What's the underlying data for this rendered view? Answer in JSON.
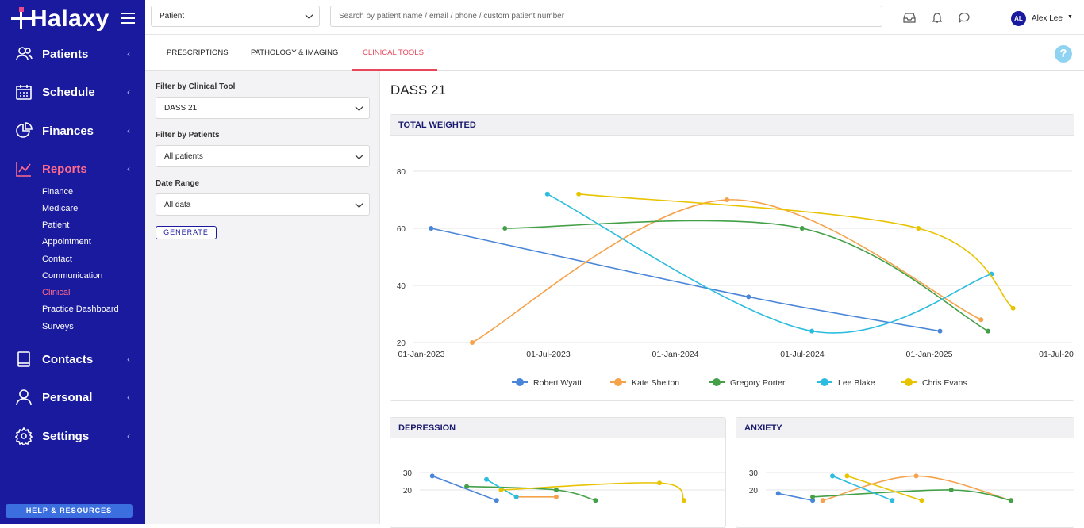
{
  "sidebar": {
    "logo": "Halaxy",
    "nav": [
      {
        "label": "Patients"
      },
      {
        "label": "Schedule"
      },
      {
        "label": "Finances"
      },
      {
        "label": "Reports"
      },
      {
        "label": "Contacts"
      },
      {
        "label": "Personal"
      },
      {
        "label": "Settings"
      }
    ],
    "reports_sub": [
      "Finance",
      "Medicare",
      "Patient",
      "Appointment",
      "Contact",
      "Communication",
      "Clinical",
      "Practice Dashboard",
      "Surveys"
    ],
    "help": "HELP & RESOURCES"
  },
  "topbar": {
    "patient_select": "Patient",
    "search_placeholder": "Search by patient name / email / phone / custom patient number",
    "avatar": "AL",
    "user": "Alex Lee"
  },
  "tabs": [
    "PRESCRIPTIONS",
    "PATHOLOGY & IMAGING",
    "CLINICAL TOOLS"
  ],
  "filters": {
    "tool_label": "Filter by Clinical Tool",
    "tool_value": "DASS 21",
    "patients_label": "Filter by Patients",
    "patients_value": "All patients",
    "range_label": "Date Range",
    "range_value": "All data",
    "generate": "GENERATE"
  },
  "main": {
    "title": "DASS 21"
  },
  "colors": {
    "Robert Wyatt": "#4a86d8",
    "Kate Shelton": "#f5a24b",
    "Gregory Porter": "#43a047",
    "Lee Blake": "#2bbcdf",
    "Chris Evans": "#e8c300"
  },
  "chart_data": [
    {
      "type": "line",
      "title": "TOTAL WEIGHTED",
      "ylim": [
        20,
        80
      ],
      "yticks": [
        20,
        40,
        60,
        80
      ],
      "xticks": [
        "01-Jan-2023",
        "01-Jul-2023",
        "01-Jan-2024",
        "01-Jul-2024",
        "01-Jan-2025",
        "01-Jul-20"
      ],
      "series": [
        {
          "name": "Robert Wyatt",
          "points": [
            [
              "2023-01-15",
              60
            ],
            [
              "2024-04-15",
              36
            ],
            [
              "2025-01-15",
              24
            ]
          ]
        },
        {
          "name": "Kate Shelton",
          "points": [
            [
              "2023-03-15",
              20
            ],
            [
              "2024-03-15",
              70
            ],
            [
              "2025-03-15",
              28
            ]
          ]
        },
        {
          "name": "Gregory Porter",
          "points": [
            [
              "2023-05-01",
              60
            ],
            [
              "2024-07-01",
              60
            ],
            [
              "2025-03-25",
              24
            ]
          ]
        },
        {
          "name": "Lee Blake",
          "points": [
            [
              "2023-07-01",
              72
            ],
            [
              "2024-07-15",
              24
            ],
            [
              "2025-03-30",
              44
            ]
          ]
        },
        {
          "name": "Chris Evans",
          "points": [
            [
              "2023-08-15",
              72
            ],
            [
              "2024-12-15",
              60
            ],
            [
              "2025-04-30",
              32
            ]
          ]
        }
      ]
    },
    {
      "type": "line",
      "title": "DEPRESSION",
      "ylim": [
        10,
        30
      ],
      "yticks": [
        20,
        30
      ],
      "series": [
        {
          "name": "Robert Wyatt",
          "points": [
            [
              "2023-01-15",
              28
            ],
            [
              "2023-08-01",
              14
            ]
          ]
        },
        {
          "name": "Kate Shelton",
          "points": [
            [
              "2023-10-01",
              16
            ],
            [
              "2024-02-01",
              16
            ]
          ]
        },
        {
          "name": "Gregory Porter",
          "points": [
            [
              "2023-05-01",
              22
            ],
            [
              "2024-02-01",
              20
            ],
            [
              "2024-06-01",
              14
            ]
          ]
        },
        {
          "name": "Lee Blake",
          "points": [
            [
              "2023-07-01",
              26
            ],
            [
              "2023-10-01",
              16
            ]
          ]
        },
        {
          "name": "Chris Evans",
          "points": [
            [
              "2023-08-15",
              20
            ],
            [
              "2024-12-15",
              24
            ],
            [
              "2025-03-01",
              14
            ]
          ]
        }
      ]
    },
    {
      "type": "line",
      "title": "ANXIETY",
      "ylim": [
        10,
        30
      ],
      "yticks": [
        20,
        30
      ],
      "series": [
        {
          "name": "Robert Wyatt",
          "points": [
            [
              "2023-01-15",
              18
            ],
            [
              "2023-05-01",
              14
            ]
          ]
        },
        {
          "name": "Kate Shelton",
          "points": [
            [
              "2023-06-01",
              14
            ],
            [
              "2024-03-15",
              28
            ],
            [
              "2025-01-01",
              14
            ]
          ]
        },
        {
          "name": "Gregory Porter",
          "points": [
            [
              "2023-05-01",
              16
            ],
            [
              "2024-07-01",
              20
            ],
            [
              "2025-01-01",
              14
            ]
          ]
        },
        {
          "name": "Lee Blake",
          "points": [
            [
              "2023-07-01",
              28
            ],
            [
              "2024-01-01",
              14
            ]
          ]
        },
        {
          "name": "Chris Evans",
          "points": [
            [
              "2023-08-15",
              28
            ],
            [
              "2024-04-01",
              14
            ]
          ]
        }
      ]
    }
  ]
}
